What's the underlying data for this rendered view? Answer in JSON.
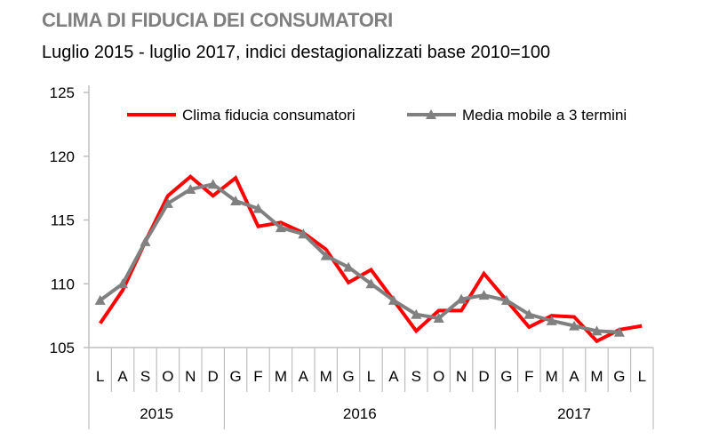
{
  "title": "CLIMA DI FIDUCIA DEI CONSUMATORI",
  "subtitle": "Luglio  2015 - luglio  2017, indici destagionalizzati base 2010=100",
  "chart_data": {
    "type": "line",
    "title": "CLIMA DI FIDUCIA DEI CONSUMATORI",
    "subtitle": "Luglio  2015 - luglio  2017, indici destagionalizzati base 2010=100",
    "categories": [
      "L",
      "A",
      "S",
      "O",
      "N",
      "D",
      "G",
      "F",
      "M",
      "A",
      "M",
      "G",
      "L",
      "A",
      "S",
      "O",
      "N",
      "D",
      "G",
      "F",
      "M",
      "A",
      "M",
      "G",
      "L"
    ],
    "years": [
      {
        "label": "2015",
        "months": 6
      },
      {
        "label": "2016",
        "months": 12
      },
      {
        "label": "2017",
        "months": 7
      }
    ],
    "ylim": [
      105,
      125
    ],
    "yticks": [
      105,
      110,
      115,
      120,
      125
    ],
    "grid": false,
    "legend": "top",
    "series": [
      {
        "name": "Clima fiducia consumatori",
        "color": "#ff0000",
        "marker": "none",
        "values": [
          106.9,
          109.5,
          113.3,
          116.9,
          118.4,
          116.9,
          118.3,
          114.5,
          114.8,
          114.0,
          112.7,
          110.1,
          111.1,
          108.7,
          106.3,
          107.9,
          107.9,
          110.8,
          108.7,
          106.6,
          107.5,
          107.4,
          105.5,
          106.4,
          106.7
        ]
      },
      {
        "name": "Media mobile a 3 termini",
        "color": "#808080",
        "marker": "triangle",
        "values": [
          108.7,
          110.0,
          113.3,
          116.3,
          117.4,
          117.8,
          116.5,
          115.9,
          114.4,
          113.9,
          112.2,
          111.3,
          110.0,
          108.7,
          107.6,
          107.3,
          108.8,
          109.1,
          108.7,
          107.6,
          107.1,
          106.7,
          106.3,
          106.2,
          null
        ]
      }
    ]
  }
}
